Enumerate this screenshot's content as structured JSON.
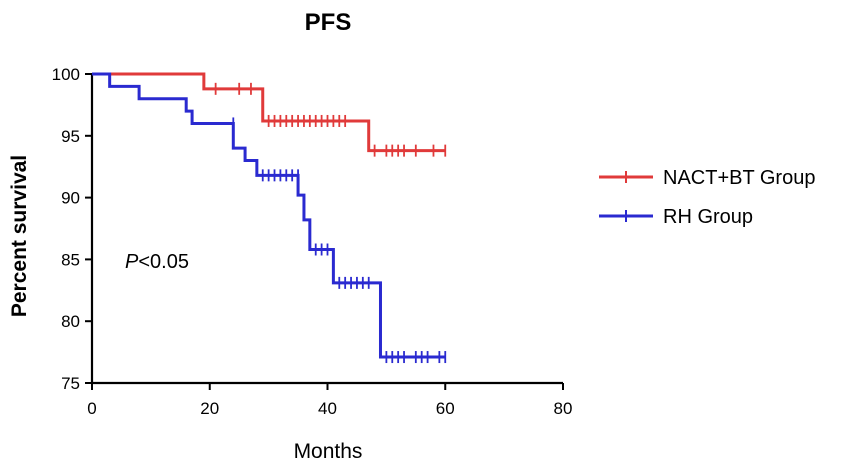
{
  "chart_data": {
    "type": "line",
    "subtype": "kaplan-meier step",
    "title": "PFS",
    "xlabel": "Months",
    "ylabel": "Percent survival",
    "xlim": [
      0,
      80
    ],
    "ylim": [
      75,
      100
    ],
    "xticks": [
      0,
      20,
      40,
      60,
      80
    ],
    "yticks": [
      75,
      80,
      85,
      90,
      95,
      100
    ],
    "grid": false,
    "legend_position": "right",
    "annotation": {
      "italic": "P",
      "rest": "<0.05"
    },
    "series": [
      {
        "name": "NACT+BT Group",
        "color": "#e03a3a",
        "steps": [
          [
            0,
            100
          ],
          [
            19,
            98.8
          ],
          [
            29,
            96.2
          ],
          [
            47,
            93.8
          ],
          [
            60,
            93.8
          ]
        ],
        "censored": [
          [
            21,
            98.8
          ],
          [
            25,
            98.8
          ],
          [
            27,
            98.8
          ],
          [
            30,
            96.2
          ],
          [
            31,
            96.2
          ],
          [
            32,
            96.2
          ],
          [
            33,
            96.2
          ],
          [
            34,
            96.2
          ],
          [
            35,
            96.2
          ],
          [
            36,
            96.2
          ],
          [
            37,
            96.2
          ],
          [
            38,
            96.2
          ],
          [
            39,
            96.2
          ],
          [
            40,
            96.2
          ],
          [
            41,
            96.2
          ],
          [
            42,
            96.2
          ],
          [
            43,
            96.2
          ],
          [
            48,
            93.8
          ],
          [
            50,
            93.8
          ],
          [
            51,
            93.8
          ],
          [
            52,
            93.8
          ],
          [
            53,
            93.8
          ],
          [
            55,
            93.8
          ],
          [
            58,
            93.8
          ],
          [
            60,
            93.8
          ]
        ]
      },
      {
        "name": "RH Group",
        "color": "#2a2ad0",
        "steps": [
          [
            0,
            100
          ],
          [
            3,
            99
          ],
          [
            8,
            98
          ],
          [
            16,
            97
          ],
          [
            17,
            96
          ],
          [
            24,
            94
          ],
          [
            26,
            93
          ],
          [
            28,
            91.8
          ],
          [
            35,
            90.2
          ],
          [
            36,
            88.2
          ],
          [
            37,
            85.8
          ],
          [
            41,
            83.1
          ],
          [
            49,
            77.1
          ],
          [
            60,
            77.1
          ]
        ],
        "censored": [
          [
            24,
            96
          ],
          [
            29,
            91.8
          ],
          [
            30,
            91.8
          ],
          [
            31,
            91.8
          ],
          [
            32,
            91.8
          ],
          [
            33,
            91.8
          ],
          [
            34,
            91.8
          ],
          [
            35,
            91.8
          ],
          [
            38,
            85.8
          ],
          [
            39,
            85.8
          ],
          [
            40,
            85.8
          ],
          [
            42,
            83.1
          ],
          [
            43,
            83.1
          ],
          [
            44,
            83.1
          ],
          [
            45,
            83.1
          ],
          [
            46,
            83.1
          ],
          [
            47,
            83.1
          ],
          [
            50,
            77.1
          ],
          [
            51,
            77.1
          ],
          [
            52,
            77.1
          ],
          [
            53,
            77.1
          ],
          [
            55,
            77.1
          ],
          [
            56,
            77.1
          ],
          [
            57,
            77.1
          ],
          [
            59,
            77.1
          ],
          [
            60,
            77.1
          ]
        ]
      }
    ]
  }
}
